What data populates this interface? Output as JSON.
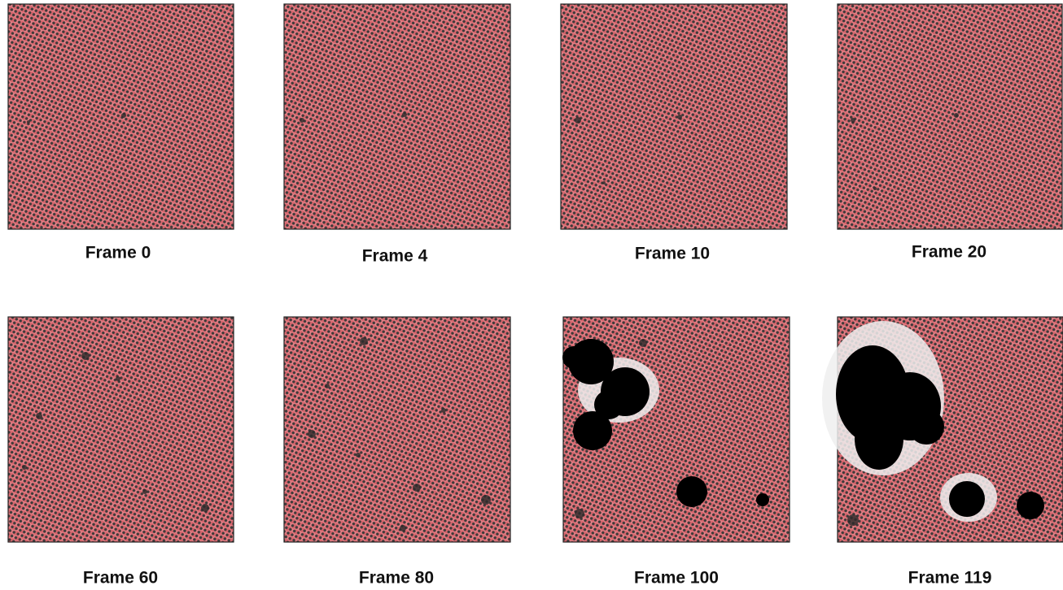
{
  "panels": [
    {
      "label": "Frame 0"
    },
    {
      "label": "Frame 4"
    },
    {
      "label": "Frame 10"
    },
    {
      "label": "Frame 20"
    },
    {
      "label": "Frame 60"
    },
    {
      "label": "Frame 80"
    },
    {
      "label": "Frame 100"
    },
    {
      "label": "Frame 119"
    }
  ]
}
